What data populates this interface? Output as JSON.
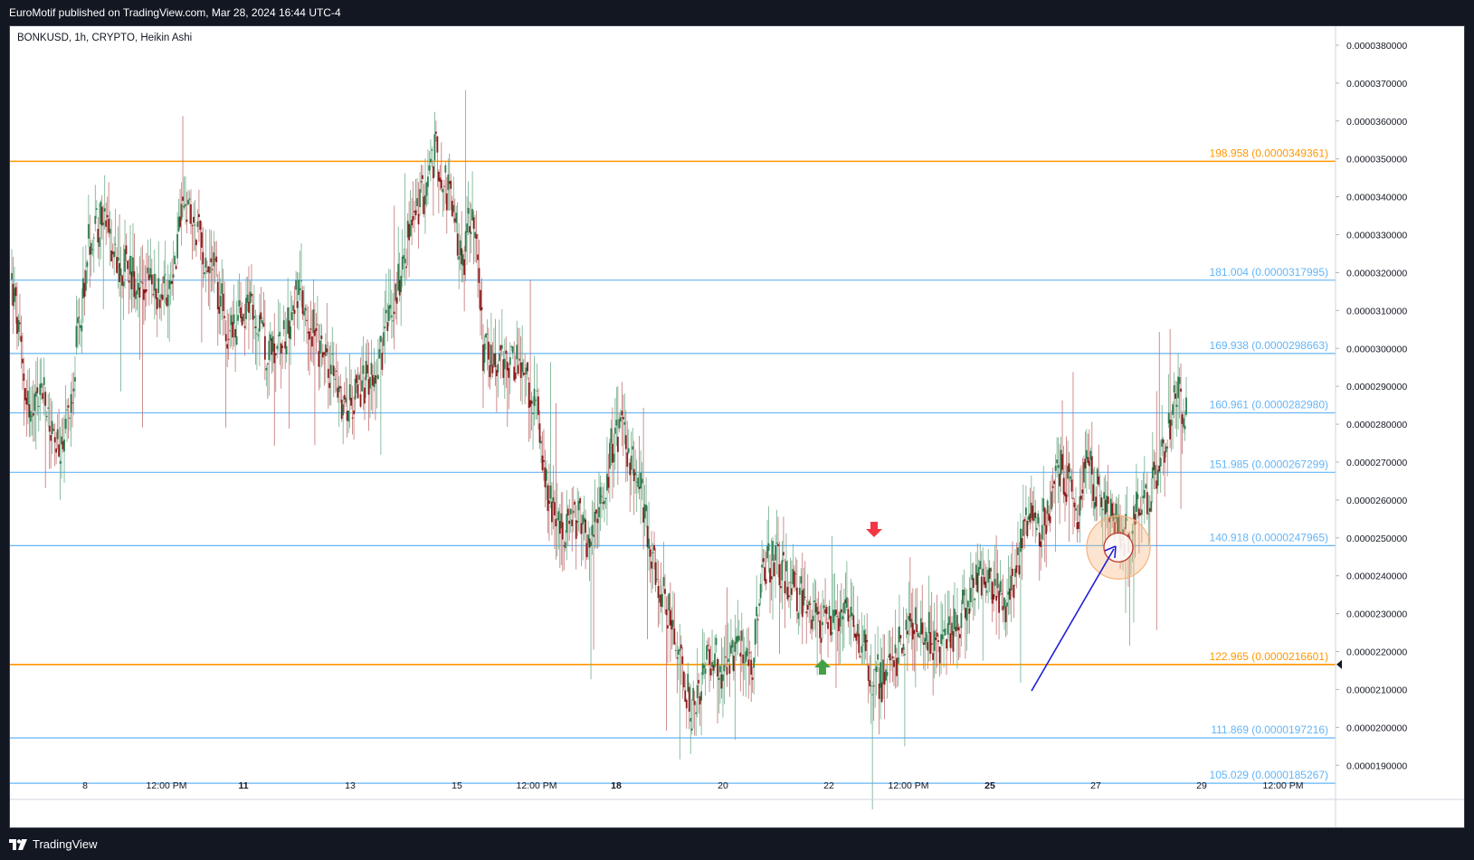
{
  "publisher": "EuroMotif published on TradingView.com, Mar 28, 2024 16:44 UTC-4",
  "symbol_label": "BONKUSD, 1h, CRYPTO, Heikin Ashi",
  "brand": "TradingView",
  "logo_icon": "tradingview-logo-icon",
  "colors": {
    "up": "#2e7d4f",
    "down": "#8b1a1a",
    "fib_main": "#ff9800",
    "fib_level": "#64b5f6",
    "arrow_down": "#f23645",
    "arrow_up": "#43a047",
    "annotation_arrow": "#1f1fd8",
    "circle": "#f7b27a"
  },
  "chart_data": {
    "type": "candlestick",
    "title": "BONKUSD, 1h, CRYPTO, Heikin Ashi",
    "ylim": [
      1.81e-05,
      3.85e-05
    ],
    "y_ticks": [
      "0.0000190000",
      "0.0000200000",
      "0.0000210000",
      "0.0000220000",
      "0.0000230000",
      "0.0000240000",
      "0.0000250000",
      "0.0000260000",
      "0.0000270000",
      "0.0000280000",
      "0.0000290000",
      "0.0000300000",
      "0.0000310000",
      "0.0000320000",
      "0.0000330000",
      "0.0000340000",
      "0.0000350000",
      "0.0000360000",
      "0.0000370000",
      "0.0000380000"
    ],
    "x_ticks": [
      {
        "label": "8",
        "bold": false
      },
      {
        "label": "12:00 PM",
        "bold": false
      },
      {
        "label": "11",
        "bold": true
      },
      {
        "label": "13",
        "bold": false
      },
      {
        "label": "15",
        "bold": false
      },
      {
        "label": "12:00 PM",
        "bold": false
      },
      {
        "label": "18",
        "bold": true
      },
      {
        "label": "20",
        "bold": false
      },
      {
        "label": "22",
        "bold": false
      },
      {
        "label": "12:00 PM",
        "bold": false
      },
      {
        "label": "25",
        "bold": true
      },
      {
        "label": "27",
        "bold": false
      },
      {
        "label": "29",
        "bold": false
      },
      {
        "label": "12:00 PM",
        "bold": false
      }
    ],
    "fib_levels": [
      {
        "label": "198.958 (0.0000349361)",
        "price": 3.49361e-05,
        "main": true
      },
      {
        "label": "181.004 (0.0000317995)",
        "price": 3.17995e-05,
        "main": false
      },
      {
        "label": "169.938 (0.0000298663)",
        "price": 2.98663e-05,
        "main": false
      },
      {
        "label": "160.961 (0.0000282980)",
        "price": 2.8298e-05,
        "main": false
      },
      {
        "label": "151.985 (0.0000267299)",
        "price": 2.67299e-05,
        "main": false
      },
      {
        "label": "140.918 (0.0000247965)",
        "price": 2.47965e-05,
        "main": false
      },
      {
        "label": "122.965 (0.0000216601)",
        "price": 2.16601e-05,
        "main": true
      },
      {
        "label": "111.869 (0.0000197216)",
        "price": 1.97216e-05,
        "main": false
      },
      {
        "label": "105.029 (0.0000185267)",
        "price": 1.85267e-05,
        "main": false
      }
    ],
    "price_path": [
      [
        0,
        3.18e-05
      ],
      [
        8,
        2.95e-05
      ],
      [
        15,
        2.8e-05
      ],
      [
        22,
        2.9e-05
      ],
      [
        30,
        2.77e-05
      ],
      [
        38,
        2.7e-05
      ],
      [
        48,
        3e-05
      ],
      [
        58,
        3.3e-05
      ],
      [
        66,
        3.35e-05
      ],
      [
        80,
        3.23e-05
      ],
      [
        95,
        3.18e-05
      ],
      [
        108,
        3.15e-05
      ],
      [
        118,
        3.18e-05
      ],
      [
        128,
        3.38e-05
      ],
      [
        138,
        3.3e-05
      ],
      [
        150,
        3.2e-05
      ],
      [
        162,
        3.03e-05
      ],
      [
        175,
        3.12e-05
      ],
      [
        188,
        3e-05
      ],
      [
        200,
        3.02e-05
      ],
      [
        212,
        3.15e-05
      ],
      [
        222,
        3.06e-05
      ],
      [
        235,
        2.95e-05
      ],
      [
        248,
        2.85e-05
      ],
      [
        262,
        2.9e-05
      ],
      [
        275,
        3e-05
      ],
      [
        285,
        3.15e-05
      ],
      [
        295,
        3.3e-05
      ],
      [
        305,
        3.4e-05
      ],
      [
        315,
        3.52e-05
      ],
      [
        325,
        3.4e-05
      ],
      [
        335,
        3.22e-05
      ],
      [
        342,
        3.38e-05
      ],
      [
        350,
        3e-05
      ],
      [
        360,
        2.95e-05
      ],
      [
        370,
        2.98e-05
      ],
      [
        380,
        2.93e-05
      ],
      [
        390,
        2.85e-05
      ],
      [
        398,
        2.6e-05
      ],
      [
        410,
        2.5e-05
      ],
      [
        420,
        2.55e-05
      ],
      [
        430,
        2.47e-05
      ],
      [
        440,
        2.62e-05
      ],
      [
        448,
        2.8e-05
      ],
      [
        455,
        2.75e-05
      ],
      [
        462,
        2.68e-05
      ],
      [
        470,
        2.58e-05
      ],
      [
        478,
        2.4e-05
      ],
      [
        488,
        2.3e-05
      ],
      [
        498,
        2.15e-05
      ],
      [
        505,
        2.05e-05
      ],
      [
        512,
        2.12e-05
      ],
      [
        520,
        2.2e-05
      ],
      [
        530,
        2.14e-05
      ],
      [
        540,
        2.2e-05
      ],
      [
        550,
        2.18e-05
      ],
      [
        558,
        2.4e-05
      ],
      [
        565,
        2.45e-05
      ],
      [
        575,
        2.38e-05
      ],
      [
        590,
        2.34e-05
      ],
      [
        600,
        2.28e-05
      ],
      [
        610,
        2.26e-05
      ],
      [
        618,
        2.35e-05
      ],
      [
        628,
        2.25e-05
      ],
      [
        638,
        2.15e-05
      ],
      [
        648,
        2.12e-05
      ],
      [
        660,
        2.22e-05
      ],
      [
        670,
        2.28e-05
      ],
      [
        680,
        2.25e-05
      ],
      [
        690,
        2.2e-05
      ],
      [
        700,
        2.26e-05
      ],
      [
        712,
        2.36e-05
      ],
      [
        722,
        2.41e-05
      ],
      [
        732,
        2.35e-05
      ],
      [
        740,
        2.32e-05
      ],
      [
        748,
        2.45e-05
      ],
      [
        755,
        2.55e-05
      ],
      [
        762,
        2.52e-05
      ],
      [
        770,
        2.58e-05
      ],
      [
        778,
        2.68e-05
      ],
      [
        786,
        2.62e-05
      ],
      [
        792,
        2.57e-05
      ],
      [
        798,
        2.7e-05
      ],
      [
        806,
        2.63e-05
      ],
      [
        814,
        2.56e-05
      ],
      [
        822,
        2.52e-05
      ],
      [
        828,
        2.5e-05
      ],
      [
        836,
        2.58e-05
      ],
      [
        844,
        2.62e-05
      ],
      [
        852,
        2.68e-05
      ],
      [
        860,
        2.8e-05
      ],
      [
        866,
        2.9e-05
      ],
      [
        872,
        2.82e-05
      ]
    ],
    "annotations": [
      "down arrow marker",
      "up arrow marker",
      "circle highlight at 140.918 level",
      "arrow pointing to circle"
    ]
  }
}
